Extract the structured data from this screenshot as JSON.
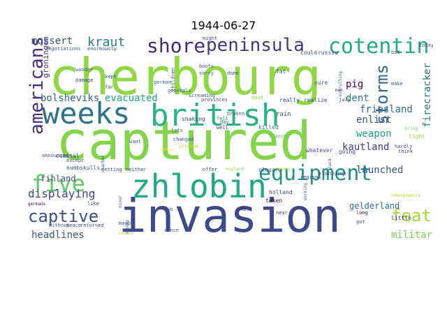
{
  "title": "1944-06-27",
  "words": [
    {
      "text": "cherbourg",
      "color": "#8fd744"
    },
    {
      "text": "captured",
      "color": "#84d44b"
    },
    {
      "text": "invasion",
      "color": "#3e4989"
    },
    {
      "text": "weeks",
      "color": "#2c728e"
    },
    {
      "text": "british",
      "color": "#2db27d"
    },
    {
      "text": "zhlobin",
      "color": "#22a884"
    },
    {
      "text": "equipment",
      "color": "#21918c"
    },
    {
      "text": "five",
      "color": "#5ec962"
    },
    {
      "text": "captive",
      "color": "#3b528b"
    },
    {
      "text": "shore",
      "color": "#482878"
    },
    {
      "text": "peninsula",
      "color": "#453781"
    },
    {
      "text": "cotentin",
      "color": "#25ab82"
    },
    {
      "text": "americans",
      "color": "#472d7b"
    },
    {
      "text": "storms",
      "color": "#31688e"
    },
    {
      "text": "feat",
      "color": "#a0da39"
    },
    {
      "text": "kraut",
      "color": "#287c8e"
    },
    {
      "text": "mussert",
      "color": "#3b528b"
    },
    {
      "text": "bolsheviks",
      "color": "#33638d"
    },
    {
      "text": "evacuated",
      "color": "#20a386"
    },
    {
      "text": "kille",
      "color": "#34b679"
    },
    {
      "text": "pig",
      "color": "#440154"
    },
    {
      "text": "dent",
      "color": "#26828e"
    },
    {
      "text": "enlist",
      "color": "#39568c"
    },
    {
      "text": "friesland",
      "color": "#306a8e"
    },
    {
      "text": "weapon",
      "color": "#1f9e89"
    },
    {
      "text": "kraut",
      "color": "#365c8d"
    },
    {
      "text": "kautland",
      "color": "#443a83"
    },
    {
      "text": "launched",
      "color": "#3b528b"
    },
    {
      "text": "displaying",
      "color": "#414487"
    },
    {
      "text": "finland",
      "color": "#3e4a89"
    },
    {
      "text": "headlines",
      "color": "#3b528b"
    },
    {
      "text": "gelderland",
      "color": "#2e6e8e"
    },
    {
      "text": "military",
      "color": "#7ad151"
    },
    {
      "text": "firecracker",
      "color": "#2a768e"
    },
    {
      "text": "groningen",
      "color": "#46307e"
    },
    {
      "text": "cotentin",
      "color": "#25ab82"
    },
    {
      "text": "germans",
      "color": "#440154"
    },
    {
      "text": "coastal",
      "color": "#3e4989"
    },
    {
      "text": "shaking",
      "color": "#3e4989"
    },
    {
      "text": "fell",
      "color": "#1f948c"
    },
    {
      "text": "well",
      "color": "#482173"
    },
    {
      "text": "broken",
      "color": "#365c8d"
    },
    {
      "text": "day",
      "color": "#2a788e"
    },
    {
      "text": "rain",
      "color": "#3b528b"
    },
    {
      "text": "killed",
      "color": "#2d708e"
    },
    {
      "text": "france",
      "color": "#5ec962"
    },
    {
      "text": "closer",
      "color": "#3b528b"
    },
    {
      "text": "anyway",
      "color": "#b5de2b"
    },
    {
      "text": "england",
      "color": "#8fd744"
    },
    {
      "text": "whatever",
      "color": "#404688"
    },
    {
      "text": "going",
      "color": "#3e4989"
    },
    {
      "text": "luck",
      "color": "#443b84"
    },
    {
      "text": "planning",
      "color": "#414487"
    },
    {
      "text": "regions",
      "color": "#3b528b"
    },
    {
      "text": "holland",
      "color": "#3e4989"
    },
    {
      "text": "taken",
      "color": "#440154"
    },
    {
      "text": "near",
      "color": "#3e4989"
    },
    {
      "text": "whole",
      "color": "#46327e"
    },
    {
      "text": "working",
      "color": "#2e6f8e"
    },
    {
      "text": "long",
      "color": "#440154"
    },
    {
      "text": "got",
      "color": "#3e4989"
    },
    {
      "text": "little",
      "color": "#482878"
    },
    {
      "text": "newspapers",
      "color": "#b8de29"
    },
    {
      "text": "hardly",
      "color": "#3b528b"
    },
    {
      "text": "light",
      "color": "#9bd93c"
    },
    {
      "text": "bring",
      "color": "#6ece58"
    },
    {
      "text": "think",
      "color": "#414487"
    },
    {
      "text": "make",
      "color": "#3b528b"
    },
    {
      "text": "sure",
      "color": "#31688e"
    },
    {
      "text": "fat",
      "color": "#3b528b"
    },
    {
      "text": "realize",
      "color": "#3b528b"
    },
    {
      "text": "really",
      "color": "#3e4989"
    },
    {
      "text": "mood",
      "color": "#8fd744"
    },
    {
      "text": "july",
      "color": "#424086"
    },
    {
      "text": "done",
      "color": "#3b528b"
    },
    {
      "text": "men",
      "color": "#433e85"
    },
    {
      "text": "could",
      "color": "#3e4989"
    },
    {
      "text": "russia",
      "color": "#3e4989"
    },
    {
      "text": "bad",
      "color": "#3b528b"
    },
    {
      "text": "today",
      "color": "#3e4989"
    },
    {
      "text": "everything",
      "color": "#2a788e"
    },
    {
      "text": "negotiations",
      "color": "#3b528b"
    },
    {
      "text": "enormously",
      "color": "#3b528b"
    },
    {
      "text": "wonder",
      "color": "#3b528b"
    },
    {
      "text": "damage",
      "color": "#3e4989"
    },
    {
      "text": "kept",
      "color": "#3b528b"
    },
    {
      "text": "far",
      "color": "#3b528b"
    },
    {
      "text": "german",
      "color": "#31688e"
    },
    {
      "text": "generals",
      "color": "#3b528b"
    },
    {
      "text": "screaming",
      "color": "#3b528b"
    },
    {
      "text": "children",
      "color": "#3b528b"
    },
    {
      "text": "boots",
      "color": "#3b528b"
    },
    {
      "text": "sorry",
      "color": "#3b528b"
    },
    {
      "text": "might",
      "color": "#3b528b"
    },
    {
      "text": "provinces",
      "color": "#3e4989"
    },
    {
      "text": "changed",
      "color": "#3b528b"
    },
    {
      "text": "lots",
      "color": "#3b528b"
    },
    {
      "text": "want",
      "color": "#3b528b"
    },
    {
      "text": "sitebok",
      "color": "#b5de2b"
    },
    {
      "text": "three",
      "color": "#fde725"
    },
    {
      "text": "except",
      "color": "#3b528b"
    },
    {
      "text": "announced",
      "color": "#3b528b"
    },
    {
      "text": "harbor",
      "color": "#3b528b"
    },
    {
      "text": "getting",
      "color": "#3b528b"
    },
    {
      "text": "neither",
      "color": "#3b528b"
    },
    {
      "text": "offer",
      "color": "#3b528b"
    },
    {
      "text": "together",
      "color": "#3b528b"
    },
    {
      "text": "numbskulls",
      "color": "#3b528b"
    },
    {
      "text": "like",
      "color": "#3b528b"
    },
    {
      "text": "minor",
      "color": "#3b528b"
    },
    {
      "text": "maybe",
      "color": "#3b528b"
    },
    {
      "text": "answer",
      "color": "#3b528b"
    },
    {
      "text": "two",
      "color": "#3b528b"
    },
    {
      "text": "since",
      "color": "#3b528b"
    },
    {
      "text": "course",
      "color": "#b5de2b"
    },
    {
      "text": "without",
      "color": "#3b528b"
    },
    {
      "text": "peace",
      "color": "#3b528b"
    },
    {
      "text": "returned",
      "color": "#3b528b"
    },
    {
      "text": "ago",
      "color": "#b5de2b"
    }
  ]
}
